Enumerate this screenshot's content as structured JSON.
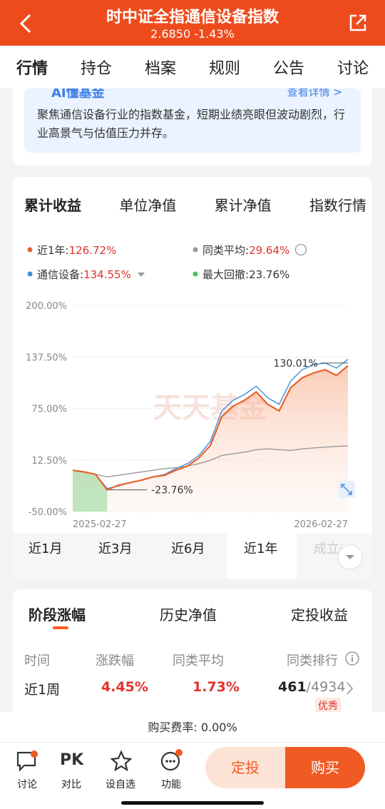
{
  "header": {
    "title": "时中证全指通信设备指数",
    "subtitle": "2.6850 -1.43%"
  },
  "tabs": [
    "行情",
    "持仓",
    "档案",
    "规则",
    "公告",
    "讨论"
  ],
  "ai_card": {
    "title": "AI懂基金",
    "link": "查看详情 >",
    "text": "聚焦通信设备行业的指数基金，短期业绩亮眼但波动剧烈，行业高景气与估值压力并存。"
  },
  "chart_tabs": [
    "累计收益",
    "单位净值",
    "累计净值",
    "指数行情"
  ],
  "chart_data": {
    "type": "line",
    "legend_items": [
      {
        "label": "近1年:",
        "value": "126.72%",
        "color": "#e8622c"
      },
      {
        "label": "同类平均:",
        "value": "29.64%",
        "color": "#999999"
      },
      {
        "label": "通信设备:",
        "value": "134.55%",
        "color": "#3d8fe0"
      },
      {
        "label": "最大回撤:",
        "value": "23.76%",
        "color": "#4cc25a"
      }
    ],
    "categories": [
      "2025-02-27",
      null,
      null,
      null,
      null,
      null,
      null,
      null,
      null,
      null,
      null,
      null,
      null,
      null,
      null,
      null,
      null,
      null,
      null,
      null,
      null,
      null,
      null,
      null,
      "2026-02-27"
    ],
    "series": [
      {
        "name": "近1年",
        "color": "#e8622c",
        "values": [
          0,
          -2,
          -5,
          -23.76,
          -18,
          -15,
          -12,
          -8,
          -6,
          0,
          5,
          15,
          30,
          65,
          78,
          85,
          95,
          80,
          72,
          100,
          112,
          118,
          122,
          115,
          126.72
        ]
      },
      {
        "name": "同类平均",
        "color": "#999999",
        "values": [
          0,
          -2,
          -5,
          -8,
          -6,
          -4,
          -2,
          0,
          2,
          3,
          5,
          8,
          12,
          18,
          20,
          22,
          25,
          26,
          25,
          24,
          26,
          27,
          28,
          29,
          29.64
        ]
      },
      {
        "name": "通信设备",
        "color": "#3d8fe0",
        "values": [
          0,
          -2,
          -5,
          -22,
          -19,
          -15,
          -12,
          -8,
          -5,
          2,
          8,
          18,
          35,
          72,
          85,
          92,
          102,
          88,
          80,
          108,
          122,
          128,
          130.01,
          124,
          134.55
        ]
      }
    ],
    "ylim": [
      -50,
      200
    ],
    "yticks": [
      {
        "value": 200,
        "label": "200.00%"
      },
      {
        "value": 137.5,
        "label": "137.50%"
      },
      {
        "value": 75,
        "label": "75.00%"
      },
      {
        "value": 12.5,
        "label": "12.50%"
      },
      {
        "value": -50,
        "label": "-50.00%"
      }
    ],
    "grid": true,
    "peak": {
      "value": 130.01,
      "label": "130.01%"
    },
    "max_drawdown": {
      "value": -23.76,
      "label": "-23.76%",
      "color": "#4cc25a"
    },
    "watermark": "天天基金"
  },
  "periods": [
    "近1月",
    "近3月",
    "近6月",
    "近1年",
    "成立来"
  ],
  "stage_tabs": [
    "阶段涨幅",
    "历史净值",
    "定投收益"
  ],
  "table": {
    "headers": [
      "时间",
      "涨跌幅",
      "同类平均",
      "同类排行"
    ],
    "rows": [
      [
        "近1周",
        "4.45%",
        "1.73%",
        "461",
        "/4934"
      ]
    ],
    "badge": "优秀"
  },
  "fee": "购买费率: 0.00%",
  "bottom": {
    "items": [
      {
        "label": "讨论"
      },
      {
        "icon": "PK",
        "label": "对比"
      },
      {
        "label": "设自选"
      },
      {
        "label": "功能"
      }
    ],
    "buttons": [
      "定投",
      "购买"
    ]
  }
}
